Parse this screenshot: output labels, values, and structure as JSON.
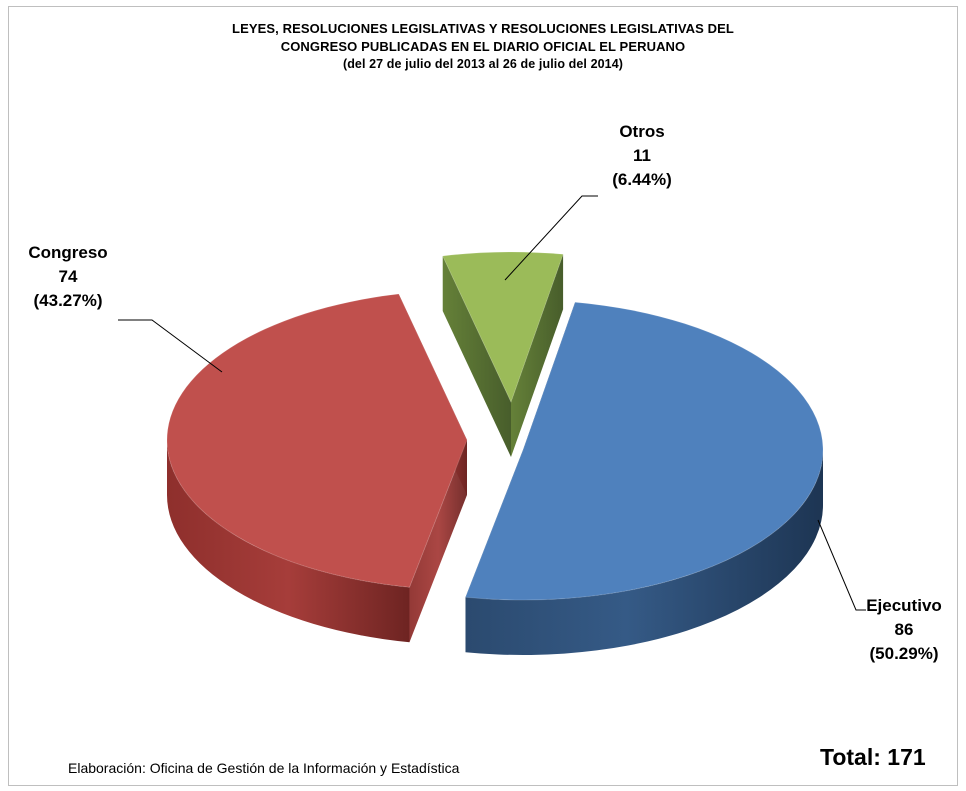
{
  "chart_data": {
    "type": "pie",
    "title_lines": [
      "LEYES, RESOLUCIONES  LEGISLATIVAS Y RESOLUCIONES LEGISLATIVAS DEL",
      "CONGRESO  PUBLICADAS  EN EL DIARIO OFICIAL EL PERUANO",
      "(del 27 de julio del 2013 al  26 de julio del 2014)"
    ],
    "slices": [
      {
        "name": "Ejecutivo",
        "value": 86,
        "percent_label": "(50.29%)",
        "color": "#4f81bd"
      },
      {
        "name": "Congreso",
        "value": 74,
        "percent_label": "(43.27%)",
        "color": "#c0504d"
      },
      {
        "name": "Otros",
        "value": 11,
        "percent_label": "(6.44%)",
        "color": "#9bbb59"
      }
    ],
    "style": "3d-exploded",
    "legend": "none"
  },
  "footer": {
    "credit": "Elaboración: Oficina de Gestión de la Información y Estadística",
    "total": "Total: 171"
  }
}
